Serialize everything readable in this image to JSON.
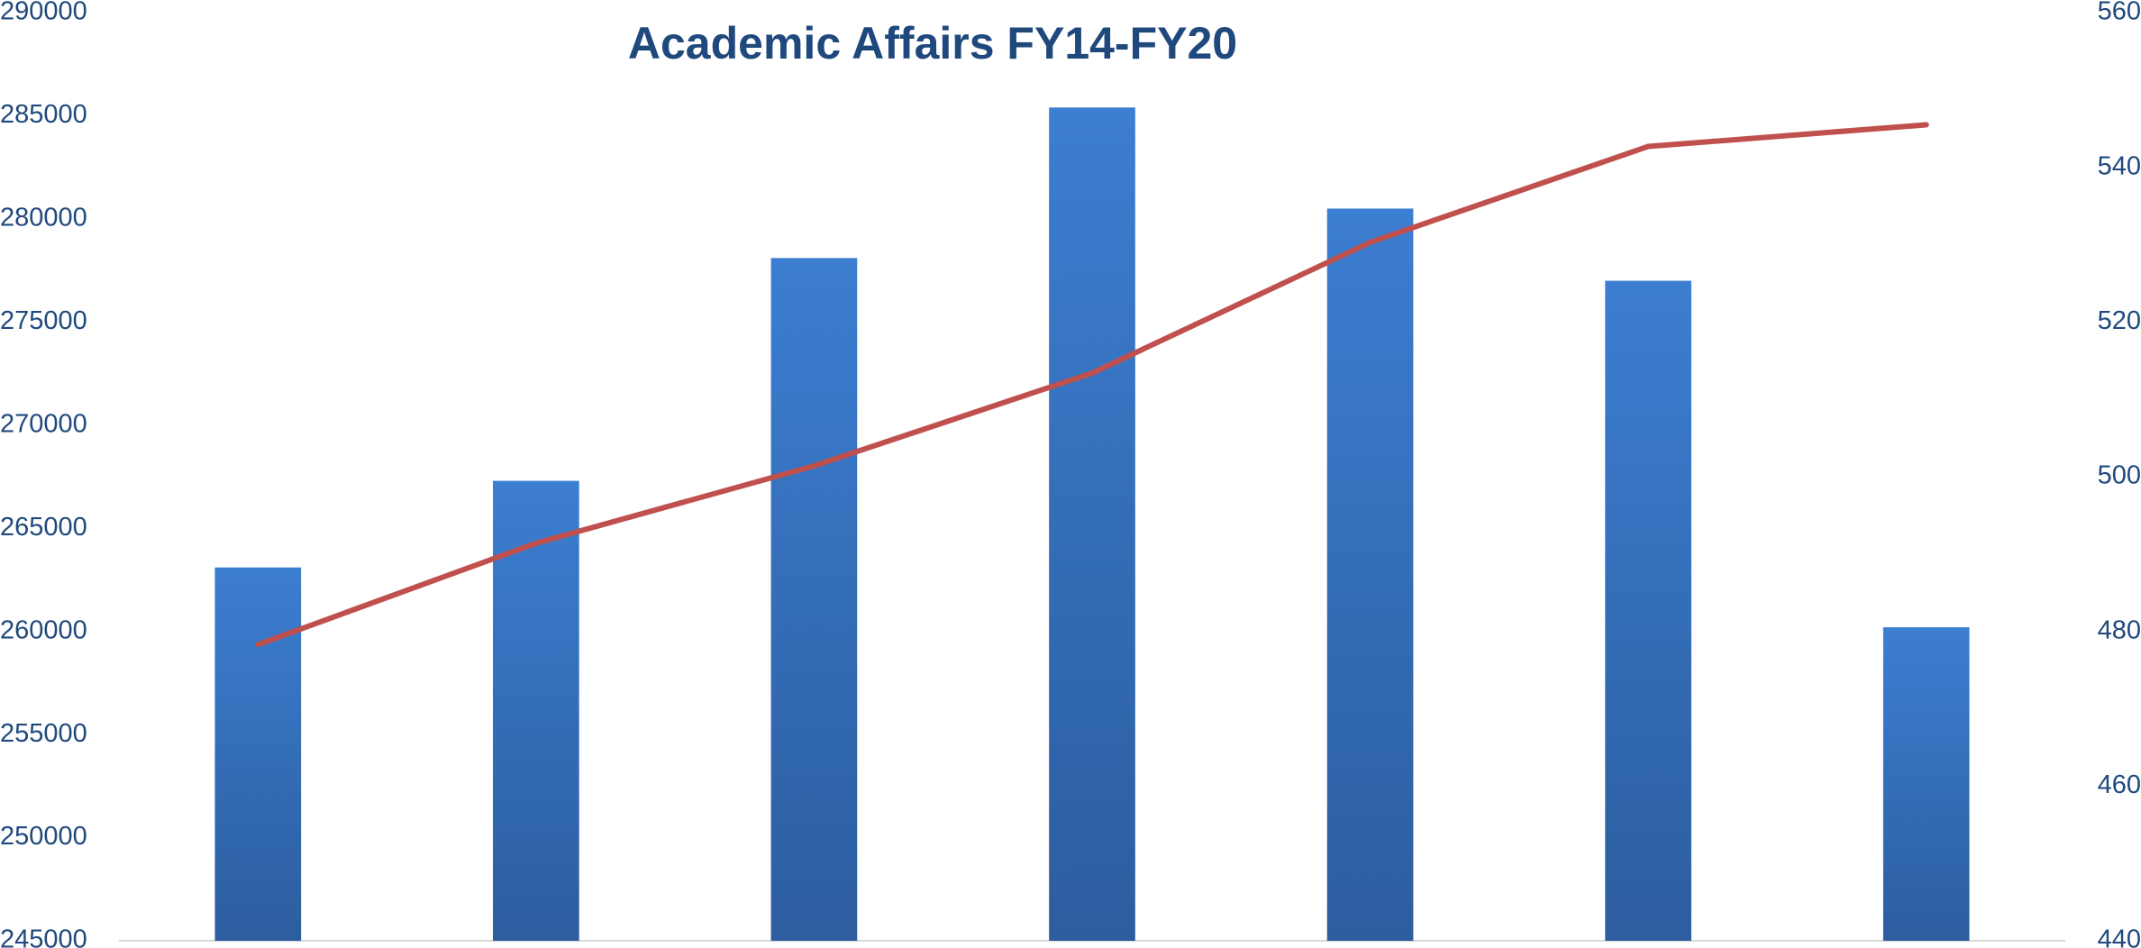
{
  "chart_data": {
    "type": "bar",
    "title": "Academic Affairs FY14-FY20",
    "categories": [
      null,
      null,
      null,
      null,
      null,
      null,
      null
    ],
    "series": [
      {
        "color": "#3a7bcc",
        "values": [
          263100,
          267300,
          278100,
          285400,
          280500,
          277000,
          260200
        ]
      },
      {
        "color": "#c0504d",
        "type": "line",
        "axis": "y2",
        "values": [
          478.3,
          491.4,
          501.4,
          513.4,
          530.3,
          542.7,
          545.5
        ]
      }
    ],
    "ylim": [
      245000,
      290000
    ],
    "yticks": [
      245000,
      250000,
      255000,
      260000,
      265000,
      270000,
      275000,
      280000,
      285000,
      290000
    ],
    "y2lim": [
      440,
      560
    ],
    "y2ticks": [
      440,
      460,
      480,
      500,
      520,
      540,
      560
    ],
    "grid": false
  }
}
